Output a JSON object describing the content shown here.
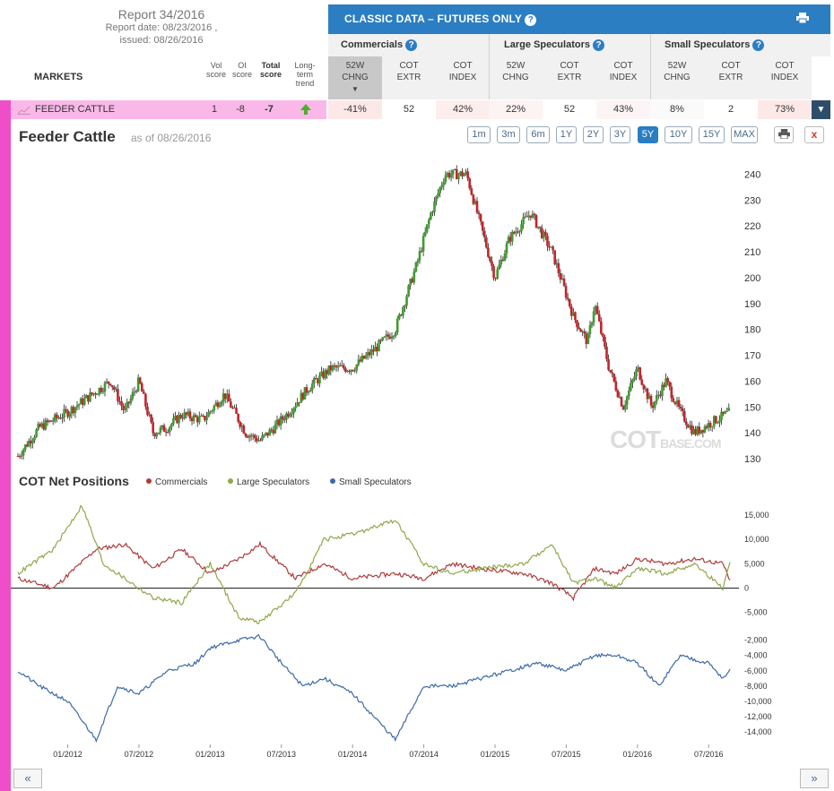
{
  "report": {
    "title": "Report 34/2016",
    "date_line": "Report date: 08/23/2016 ,",
    "issued_line": "issued: 08/26/2016"
  },
  "header": {
    "markets_label": "MARKETS",
    "vol_score": [
      "Vol",
      "score"
    ],
    "oi_score": [
      "OI",
      "score"
    ],
    "total_score": [
      "Total",
      "score"
    ],
    "long_term_trend": [
      "Long-term",
      "trend"
    ]
  },
  "classic": {
    "title": "CLASSIC DATA – FUTURES ONLY",
    "groups": [
      "Commercials",
      "Large Speculators",
      "Small Speculators"
    ],
    "columns": [
      [
        "52W",
        "CHNG"
      ],
      [
        "COT",
        "EXTR"
      ],
      [
        "COT",
        "INDEX"
      ],
      [
        "52W",
        "CHNG"
      ],
      [
        "COT",
        "EXTR"
      ],
      [
        "COT",
        "INDEX"
      ],
      [
        "52W",
        "CHNG"
      ],
      [
        "COT",
        "EXTR"
      ],
      [
        "COT",
        "INDEX"
      ]
    ]
  },
  "row": {
    "market": "FEEDER CATTLE",
    "vol": "1",
    "oi": "-8",
    "total": "-7",
    "values": [
      "-41%",
      "52",
      "42%",
      "22%",
      "52",
      "43%",
      "8%",
      "2",
      "73%"
    ],
    "value_colors": [
      "#fde8e8",
      "#ffffff",
      "#fdeeee",
      "#fdf3f3",
      "#ffffff",
      "#fdf5f5",
      "#fbfafa",
      "#ffffff",
      "#fde8e8"
    ]
  },
  "chart": {
    "title": "Feeder Cattle",
    "as_of": "as of 08/26/2016",
    "ranges": [
      "1m",
      "3m",
      "6m",
      "1Y",
      "2Y",
      "3Y",
      "5Y",
      "10Y",
      "15Y",
      "MAX"
    ],
    "active_range": "5Y",
    "close_symbol": "x",
    "watermark": "COT",
    "watermark_small": "BASE.COM"
  },
  "cot": {
    "title": "COT Net Positions",
    "legend": [
      "Commercials",
      "Large Speculators",
      "Small Speculators"
    ]
  },
  "colors": {
    "commercials": "#b03a3a",
    "large": "#8fa848",
    "small": "#3d6aa8",
    "accent": "#2b7ec2"
  },
  "chart_data": [
    {
      "type": "candlestick",
      "title": "Feeder Cattle",
      "ylim": [
        130,
        245
      ],
      "y_ticks": [
        130,
        140,
        150,
        160,
        170,
        180,
        190,
        200,
        210,
        220,
        230,
        240
      ],
      "x_ticks": [
        "01/2012",
        "07/2012",
        "01/2013",
        "07/2013",
        "01/2014",
        "07/2014",
        "01/2015",
        "07/2015",
        "01/2016",
        "07/2016"
      ],
      "x": [
        2011.65,
        2011.8,
        2012.0,
        2012.15,
        2012.3,
        2012.4,
        2012.5,
        2012.6,
        2012.7,
        2012.8,
        2012.95,
        2013.1,
        2013.25,
        2013.35,
        2013.45,
        2013.55,
        2013.7,
        2013.85,
        2014.0,
        2014.15,
        2014.3,
        2014.45,
        2014.55,
        2014.65,
        2014.8,
        2014.9,
        2015.0,
        2015.1,
        2015.25,
        2015.4,
        2015.55,
        2015.65,
        2015.7,
        2015.8,
        2015.9,
        2016.0,
        2016.1,
        2016.2,
        2016.3,
        2016.4,
        2016.55,
        2016.65
      ],
      "close": [
        131,
        142,
        148,
        154,
        160,
        148,
        160,
        140,
        142,
        147,
        145,
        155,
        140,
        137,
        142,
        148,
        158,
        165,
        165,
        172,
        180,
        205,
        225,
        240,
        240,
        220,
        200,
        215,
        225,
        210,
        185,
        175,
        190,
        165,
        150,
        165,
        150,
        160,
        148,
        140,
        145,
        148
      ]
    },
    {
      "type": "line",
      "title": "COT Net Positions",
      "series": [
        {
          "name": "Commercials",
          "x": [
            2011.65,
            2011.9,
            2012.2,
            2012.4,
            2012.6,
            2012.8,
            2013.0,
            2013.2,
            2013.35,
            2013.6,
            2013.8,
            2014.0,
            2014.3,
            2014.5,
            2014.7,
            2014.9,
            2015.2,
            2015.4,
            2015.55,
            2015.7,
            2015.85,
            2016.0,
            2016.2,
            2016.4,
            2016.6,
            2016.65
          ],
          "y": [
            2000,
            0,
            8000,
            9000,
            4000,
            8000,
            3000,
            6000,
            9000,
            2000,
            5000,
            2000,
            3000,
            2000,
            5000,
            4000,
            3000,
            1000,
            -2000,
            4000,
            3000,
            6000,
            5000,
            6000,
            5000,
            1500
          ]
        },
        {
          "name": "Large Speculators",
          "x": [
            2011.65,
            2011.9,
            2012.1,
            2012.25,
            2012.4,
            2012.6,
            2012.8,
            2013.0,
            2013.2,
            2013.35,
            2013.6,
            2013.8,
            2014.0,
            2014.3,
            2014.5,
            2014.7,
            2014.9,
            2015.2,
            2015.4,
            2015.55,
            2015.7,
            2015.85,
            2016.0,
            2016.2,
            2016.4,
            2016.6,
            2016.65
          ],
          "y": [
            3000,
            8000,
            17000,
            5000,
            2000,
            -2000,
            -3000,
            5000,
            -6000,
            -7000,
            -1000,
            10000,
            11000,
            14000,
            5000,
            3000,
            4000,
            5000,
            9000,
            1000,
            2000,
            0,
            4000,
            3000,
            5000,
            0,
            5500
          ]
        },
        {
          "name": "Small Speculators",
          "x": [
            2011.65,
            2011.8,
            2012.0,
            2012.2,
            2012.35,
            2012.5,
            2012.7,
            2012.9,
            2013.0,
            2013.2,
            2013.35,
            2013.5,
            2013.65,
            2013.8,
            2014.0,
            2014.15,
            2014.3,
            2014.5,
            2014.7,
            2014.9,
            2015.1,
            2015.3,
            2015.5,
            2015.7,
            2015.85,
            2016.0,
            2016.15,
            2016.3,
            2016.5,
            2016.6,
            2016.65
          ],
          "y": [
            -6000,
            -8000,
            -10000,
            -15000,
            -8000,
            -9000,
            -6000,
            -5000,
            -3000,
            -2000,
            -1500,
            -5000,
            -8000,
            -7000,
            -9000,
            -12000,
            -15000,
            -8000,
            -8000,
            -7000,
            -6000,
            -5000,
            -6000,
            -4000,
            -4000,
            -5000,
            -8000,
            -4000,
            -5000,
            -7000,
            -6000
          ]
        }
      ],
      "y_ticks_top": [
        -5000,
        0,
        5000,
        10000,
        15000
      ],
      "y_ticks_bottom": [
        -14000,
        -12000,
        -10000,
        -8000,
        -6000,
        -4000,
        -2000
      ],
      "legend": "top-left"
    }
  ]
}
